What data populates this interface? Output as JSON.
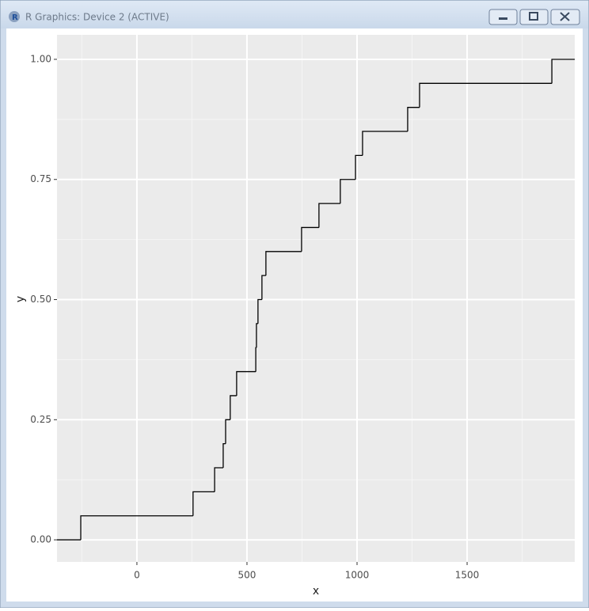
{
  "window": {
    "title": "R Graphics: Device 2 (ACTIVE)"
  },
  "chart_data": {
    "type": "step",
    "xlabel": "x",
    "ylabel": "y",
    "x": [
      -363,
      -255,
      255,
      353,
      392,
      403,
      424,
      453,
      540,
      543,
      550,
      568,
      586,
      748,
      827,
      924,
      993,
      1025,
      1230,
      1284,
      1885
    ],
    "values": [
      0,
      0.05,
      0.1,
      0.15,
      0.2,
      0.25,
      0.3,
      0.35,
      0.4,
      0.45,
      0.5,
      0.55,
      0.6,
      0.65,
      0.7,
      0.75,
      0.8,
      0.85,
      0.9,
      0.95,
      1
    ],
    "color": "#000000",
    "xlim": [
      -363,
      1989
    ],
    "ylim": [
      -0.046,
      1.051
    ],
    "xticks": [
      0,
      500,
      1000,
      1500
    ],
    "yticks": [
      {
        "value": 0,
        "label": "0.00"
      },
      {
        "value": 0.25,
        "label": "0.25"
      },
      {
        "value": 0.5,
        "label": "0.50"
      },
      {
        "value": 0.75,
        "label": "0.75"
      },
      {
        "value": 1,
        "label": "1.00"
      }
    ],
    "x_minor_breaks": [
      -250,
      250,
      750,
      1250,
      1750
    ],
    "y_minor_breaks": [
      0.125,
      0.375,
      0.625,
      0.875
    ],
    "grid": true
  }
}
